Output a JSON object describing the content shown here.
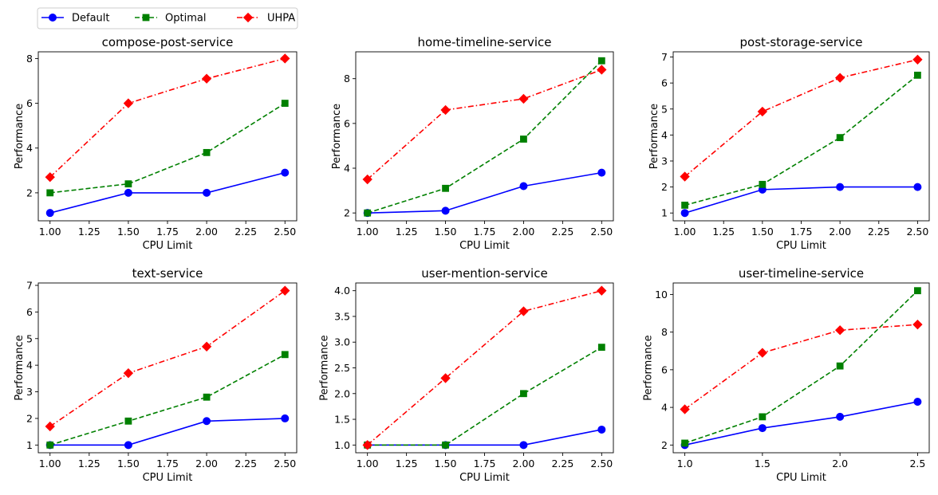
{
  "legend": {
    "placement": "top-left",
    "entries": [
      {
        "name": "Default",
        "color": "#0000ff",
        "marker": "circle",
        "dash": "solid"
      },
      {
        "name": "Optimal",
        "color": "#008000",
        "marker": "square",
        "dash": "dashed"
      },
      {
        "name": "UHPA",
        "color": "#ff0000",
        "marker": "diamond",
        "dash": "dashdot"
      }
    ]
  },
  "chart_data": [
    {
      "type": "line",
      "title": "compose-post-service",
      "xlabel": "CPU Limit",
      "ylabel": "Performance",
      "x": [
        1.0,
        1.5,
        2.0,
        2.5
      ],
      "xlim": [
        0.925,
        2.575
      ],
      "ylim": [
        0.75,
        8.3
      ],
      "xticks": [
        1.0,
        1.25,
        1.5,
        1.75,
        2.0,
        2.25,
        2.5
      ],
      "xtick_labels": [
        "1.00",
        "1.25",
        "1.50",
        "1.75",
        "2.00",
        "2.25",
        "2.50"
      ],
      "yticks": [
        2,
        4,
        6,
        8
      ],
      "ytick_labels": [
        "2",
        "4",
        "6",
        "8"
      ],
      "grid": false,
      "series": [
        {
          "name": "Default",
          "values": [
            1.1,
            2.0,
            2.0,
            2.9
          ]
        },
        {
          "name": "Optimal",
          "values": [
            2.0,
            2.4,
            3.8,
            6.0
          ]
        },
        {
          "name": "UHPA",
          "values": [
            2.7,
            6.0,
            7.1,
            8.0
          ]
        }
      ]
    },
    {
      "type": "line",
      "title": "home-timeline-service",
      "xlabel": "CPU Limit",
      "ylabel": "Performance",
      "x": [
        1.0,
        1.5,
        2.0,
        2.5
      ],
      "xlim": [
        0.925,
        2.575
      ],
      "ylim": [
        1.65,
        9.2
      ],
      "xticks": [
        1.0,
        1.25,
        1.5,
        1.75,
        2.0,
        2.25,
        2.5
      ],
      "xtick_labels": [
        "1.00",
        "1.25",
        "1.50",
        "1.75",
        "2.00",
        "2.25",
        "2.50"
      ],
      "yticks": [
        2,
        4,
        6,
        8
      ],
      "ytick_labels": [
        "2",
        "4",
        "6",
        "8"
      ],
      "grid": false,
      "series": [
        {
          "name": "Default",
          "values": [
            2.0,
            2.1,
            3.2,
            3.8
          ]
        },
        {
          "name": "Optimal",
          "values": [
            2.0,
            3.1,
            5.3,
            8.8
          ]
        },
        {
          "name": "UHPA",
          "values": [
            3.5,
            6.6,
            7.1,
            8.4
          ]
        }
      ]
    },
    {
      "type": "line",
      "title": "post-storage-service",
      "xlabel": "CPU Limit",
      "ylabel": "Performance",
      "x": [
        1.0,
        1.5,
        2.0,
        2.5
      ],
      "xlim": [
        0.925,
        2.575
      ],
      "ylim": [
        0.7,
        7.2
      ],
      "xticks": [
        1.0,
        1.25,
        1.5,
        1.75,
        2.0,
        2.25,
        2.5
      ],
      "xtick_labels": [
        "1.00",
        "1.25",
        "1.50",
        "1.75",
        "2.00",
        "2.25",
        "2.50"
      ],
      "yticks": [
        1,
        2,
        3,
        4,
        5,
        6,
        7
      ],
      "ytick_labels": [
        "1",
        "2",
        "3",
        "4",
        "5",
        "6",
        "7"
      ],
      "grid": false,
      "series": [
        {
          "name": "Default",
          "values": [
            1.0,
            1.9,
            2.0,
            2.0
          ]
        },
        {
          "name": "Optimal",
          "values": [
            1.3,
            2.1,
            3.9,
            6.3
          ]
        },
        {
          "name": "UHPA",
          "values": [
            2.4,
            4.9,
            6.2,
            6.9
          ]
        }
      ]
    },
    {
      "type": "line",
      "title": "text-service",
      "xlabel": "CPU Limit",
      "ylabel": "Performance",
      "x": [
        1.0,
        1.5,
        2.0,
        2.5
      ],
      "xlim": [
        0.925,
        2.575
      ],
      "ylim": [
        0.71,
        7.09
      ],
      "xticks": [
        1.0,
        1.25,
        1.5,
        1.75,
        2.0,
        2.25,
        2.5
      ],
      "xtick_labels": [
        "1.00",
        "1.25",
        "1.50",
        "1.75",
        "2.00",
        "2.25",
        "2.50"
      ],
      "yticks": [
        1,
        2,
        3,
        4,
        5,
        6,
        7
      ],
      "ytick_labels": [
        "1",
        "2",
        "3",
        "4",
        "5",
        "6",
        "7"
      ],
      "grid": false,
      "series": [
        {
          "name": "Default",
          "values": [
            1.0,
            1.0,
            1.9,
            2.0
          ]
        },
        {
          "name": "Optimal",
          "values": [
            1.0,
            1.9,
            2.8,
            4.4
          ]
        },
        {
          "name": "UHPA",
          "values": [
            1.7,
            3.7,
            4.7,
            6.8
          ]
        }
      ]
    },
    {
      "type": "line",
      "title": "user-mention-service",
      "xlabel": "CPU Limit",
      "ylabel": "Performance",
      "x": [
        1.0,
        1.5,
        2.0,
        2.5
      ],
      "xlim": [
        0.925,
        2.575
      ],
      "ylim": [
        0.85,
        4.15
      ],
      "xticks": [
        1.0,
        1.25,
        1.5,
        1.75,
        2.0,
        2.25,
        2.5
      ],
      "xtick_labels": [
        "1.00",
        "1.25",
        "1.50",
        "1.75",
        "2.00",
        "2.25",
        "2.50"
      ],
      "yticks": [
        1.0,
        1.5,
        2.0,
        2.5,
        3.0,
        3.5,
        4.0
      ],
      "ytick_labels": [
        "1.0",
        "1.5",
        "2.0",
        "2.5",
        "3.0",
        "3.5",
        "4.0"
      ],
      "grid": false,
      "series": [
        {
          "name": "Default",
          "values": [
            1.0,
            1.0,
            1.0,
            1.3
          ]
        },
        {
          "name": "Optimal",
          "values": [
            1.0,
            1.0,
            2.0,
            2.9
          ]
        },
        {
          "name": "UHPA",
          "values": [
            1.0,
            2.3,
            3.6,
            4.0
          ]
        }
      ]
    },
    {
      "type": "line",
      "title": "user-timeline-service",
      "xlabel": "CPU Limit",
      "ylabel": "Performance",
      "x": [
        1.0,
        1.5,
        2.0,
        2.5
      ],
      "xlim": [
        0.925,
        2.575
      ],
      "ylim": [
        1.59,
        10.61
      ],
      "xticks": [
        1.0,
        1.5,
        2.0,
        2.5
      ],
      "xtick_labels": [
        "1.0",
        "1.5",
        "2.0",
        "2.5"
      ],
      "yticks": [
        2,
        4,
        6,
        8,
        10
      ],
      "ytick_labels": [
        "2",
        "4",
        "6",
        "8",
        "10"
      ],
      "grid": false,
      "series": [
        {
          "name": "Default",
          "values": [
            2.0,
            2.9,
            3.5,
            4.3
          ]
        },
        {
          "name": "Optimal",
          "values": [
            2.1,
            3.5,
            6.2,
            10.2
          ]
        },
        {
          "name": "UHPA",
          "values": [
            3.9,
            6.9,
            8.1,
            8.4
          ]
        }
      ]
    }
  ]
}
